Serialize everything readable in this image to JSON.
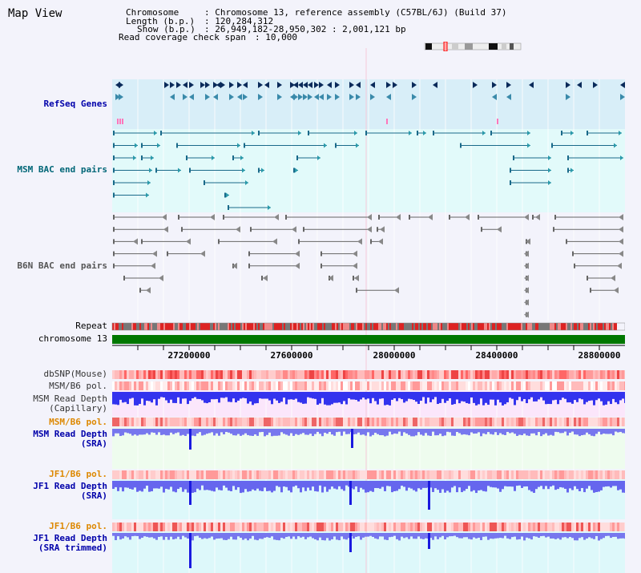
{
  "title": "Map View",
  "info": {
    "chromosome_key": "Chromosome",
    "chromosome_val": ": Chromosome 13, reference assembly (C57BL/6J) (Build 37)",
    "length_key": "Length (b.p.)",
    "length_val": ": 120,284,312",
    "show_key": "Show (b.p.)",
    "show_val": ": 26,949,182-28,950,302 : 2,001,121 bp",
    "coverage_key": "Read coverage check span",
    "coverage_val": ": 10,000"
  },
  "tracks": {
    "refseq": "RefSeq Genes",
    "msm_bac": "MSM BAC end pairs",
    "b6n_bac": "B6N BAC end pairs",
    "repeat": "Repeat",
    "chromosome": "chromosome 13",
    "dbsnp": "dbSNP(Mouse)",
    "msm_pol1": "MSM/B6 pol.",
    "msm_depth_cap_1": "MSM Read Depth",
    "msm_depth_cap_2": "(Capillary)",
    "msm_pol2": "MSM/B6 pol.",
    "msm_depth_sra_1": "MSM Read Depth",
    "msm_depth_sra_2": "(SRA)",
    "jf1_pol1": "JF1/B6 pol.",
    "jf1_depth_sra_1": "JF1 Read Depth",
    "jf1_depth_sra_2": "(SRA)",
    "jf1_pol2": "JF1/B6 pol.",
    "jf1_depth_trim_1": "JF1 Read Depth",
    "jf1_depth_trim_2": "(SRA trimmed)"
  },
  "axis": {
    "ticks": [
      "27200000",
      "27600000",
      "28000000",
      "28400000",
      "28800000"
    ],
    "range": [
      26949182,
      28950302
    ]
  },
  "colors": {
    "label_dark": "#222222",
    "label_blue": "#0000aa",
    "label_teal": "#006677",
    "label_orange": "#dd8800",
    "chromosome_green": "#007700",
    "depth_blue": "#2222ee"
  }
}
